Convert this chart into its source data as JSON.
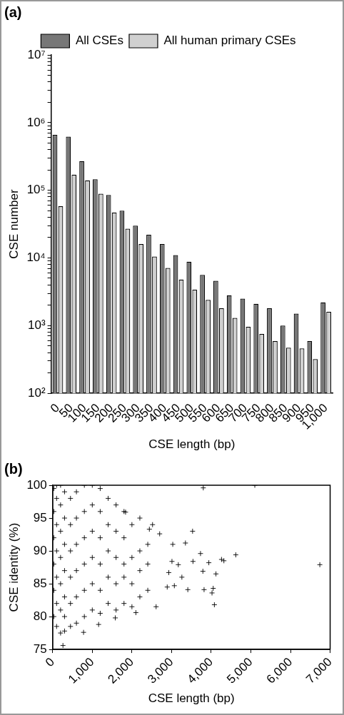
{
  "chart_data": [
    {
      "type": "bar",
      "title": "(a)",
      "xlabel": "CSE length (bp)",
      "ylabel": "CSE number",
      "log": true,
      "grid": false,
      "legend": "top",
      "categories": [
        "0",
        "50",
        "100",
        "150",
        "200",
        "250",
        "300",
        "350",
        "400",
        "450",
        "500",
        "550",
        "600",
        "650",
        "700",
        "750",
        "800",
        "850",
        "900",
        "950",
        "1,000"
      ],
      "series": [
        {
          "name": "All CSEs",
          "color": "#777777",
          "values": [
            660000,
            620000,
            270000,
            145000,
            85000,
            50000,
            30000,
            22000,
            16000,
            11000,
            8800,
            5600,
            4600,
            2800,
            2500,
            2100,
            1800,
            1000,
            1500,
            590,
            2200
          ]
        },
        {
          "name": "All human primary CSEs",
          "color": "#d0d0d0",
          "values": [
            58000,
            170000,
            140000,
            89000,
            47000,
            27000,
            16000,
            10500,
            7100,
            4800,
            3400,
            2400,
            1800,
            1300,
            960,
            750,
            590,
            470,
            460,
            320,
            1600
          ]
        }
      ],
      "ylim": [
        100,
        10000000
      ],
      "yticks": [
        {
          "value": 100,
          "label": "10²"
        },
        {
          "value": 200,
          "label": null
        },
        {
          "value": 300,
          "label": null
        },
        {
          "value": 400,
          "label": null
        },
        {
          "value": 500,
          "label": null
        },
        {
          "value": 600,
          "label": null
        },
        {
          "value": 700,
          "label": null
        },
        {
          "value": 800,
          "label": null
        },
        {
          "value": 900,
          "label": null
        },
        {
          "value": 1000,
          "label": "10³"
        },
        {
          "value": 2000,
          "label": null
        },
        {
          "value": 3000,
          "label": null
        },
        {
          "value": 4000,
          "label": null
        },
        {
          "value": 5000,
          "label": null
        },
        {
          "value": 6000,
          "label": null
        },
        {
          "value": 7000,
          "label": null
        },
        {
          "value": 8000,
          "label": null
        },
        {
          "value": 9000,
          "label": null
        },
        {
          "value": 10000,
          "label": "10⁴"
        },
        {
          "value": 20000,
          "label": null
        },
        {
          "value": 30000,
          "label": null
        },
        {
          "value": 40000,
          "label": null
        },
        {
          "value": 50000,
          "label": null
        },
        {
          "value": 60000,
          "label": null
        },
        {
          "value": 70000,
          "label": null
        },
        {
          "value": 80000,
          "label": null
        },
        {
          "value": 90000,
          "label": null
        },
        {
          "value": 100000,
          "label": "10⁵"
        },
        {
          "value": 200000,
          "label": null
        },
        {
          "value": 300000,
          "label": null
        },
        {
          "value": 400000,
          "label": null
        },
        {
          "value": 500000,
          "label": null
        },
        {
          "value": 600000,
          "label": null
        },
        {
          "value": 700000,
          "label": null
        },
        {
          "value": 800000,
          "label": null
        },
        {
          "value": 900000,
          "label": null
        },
        {
          "value": 1000000,
          "label": "10⁶"
        },
        {
          "value": 2000000,
          "label": null
        },
        {
          "value": 3000000,
          "label": null
        },
        {
          "value": 4000000,
          "label": null
        },
        {
          "value": 5000000,
          "label": null
        },
        {
          "value": 6000000,
          "label": null
        },
        {
          "value": 7000000,
          "label": null
        },
        {
          "value": 8000000,
          "label": null
        },
        {
          "value": 9000000,
          "label": null
        },
        {
          "value": 10000000,
          "label": "10⁷"
        }
      ]
    },
    {
      "type": "scatter",
      "title": "(b)",
      "xlabel": "CSE length (bp)",
      "ylabel": "CSE identity (%)",
      "grid": false,
      "marker": "cross",
      "series": [
        {
          "color": "#000000",
          "x": [
            30,
            30,
            30,
            30,
            30,
            30,
            100,
            100,
            100,
            100,
            100,
            100,
            100,
            200,
            200,
            200,
            200,
            200,
            200,
            200,
            300,
            300,
            300,
            300,
            300,
            300,
            300,
            450,
            450,
            450,
            450,
            450,
            450,
            600,
            600,
            600,
            600,
            600,
            600,
            800,
            800,
            800,
            800,
            800,
            800,
            1000,
            1000,
            1000,
            1000,
            1000,
            1000,
            1200,
            1200,
            1200,
            1200,
            1200,
            1200,
            1400,
            1400,
            1400,
            1400,
            1400,
            1600,
            1600,
            1600,
            1600,
            1600,
            1800,
            1800,
            1800,
            1800,
            1800,
            2000,
            2000,
            2000,
            2000,
            2200,
            2200,
            2200,
            2200,
            2400,
            2400,
            2400,
            6740,
            4620,
            4320,
            4260,
            4080,
            4120,
            4050,
            4020,
            3820,
            3410,
            3790,
            3940,
            3540,
            3530,
            3730,
            3350,
            3260,
            3170,
            3030,
            3010,
            2930,
            2890,
            3070,
            2610,
            2700,
            2520,
            2440,
            2100,
            1840,
            1580,
            1160,
            780,
            260,
            3800,
            5100
          ],
          "values": [
            80,
            84,
            88,
            92,
            96,
            99.5,
            78.5,
            82,
            86,
            90,
            94,
            98,
            100,
            77.5,
            81,
            85,
            89,
            93,
            97,
            100,
            77.8,
            80,
            83,
            87,
            91,
            95,
            99,
            78.5,
            82,
            86,
            90,
            94,
            98,
            79,
            83,
            87,
            91,
            95,
            99,
            80,
            84,
            88,
            92,
            96,
            100,
            81,
            85,
            89,
            93,
            97,
            100,
            80.5,
            84,
            88,
            92,
            96,
            99.5,
            82,
            86,
            90,
            94,
            98,
            81,
            85,
            89,
            93,
            97,
            82,
            86,
            88,
            92,
            96,
            81.5,
            85,
            89,
            94,
            83,
            87,
            90,
            95,
            84,
            88,
            91,
            87.9,
            89.4,
            88.5,
            88.7,
            81.8,
            86.5,
            84.3,
            83.6,
            84.1,
            84.1,
            86.9,
            88.2,
            88.4,
            93,
            89.6,
            91.2,
            86,
            87.9,
            91,
            88.4,
            86.7,
            84.5,
            84.7,
            81.5,
            92.6,
            94,
            93.3,
            80.6,
            95.9,
            79.8,
            78.8,
            77.6,
            75.6,
            99.6,
            100
          ]
        }
      ],
      "xlim": [
        0,
        7000
      ],
      "xticks": [
        0,
        {
          "value": 1000,
          "label": "1,000"
        },
        {
          "value": 2000,
          "label": "2,000"
        },
        {
          "value": 3000,
          "label": "3,000"
        },
        {
          "value": 4000,
          "label": "4,000"
        },
        {
          "value": 5000,
          "label": "5,000"
        },
        {
          "value": 6000,
          "label": "6,000"
        },
        {
          "value": 7000,
          "label": "7,000"
        }
      ],
      "ylim": [
        75,
        100
      ],
      "yticks": [
        75,
        80,
        85,
        90,
        95,
        100
      ]
    }
  ]
}
